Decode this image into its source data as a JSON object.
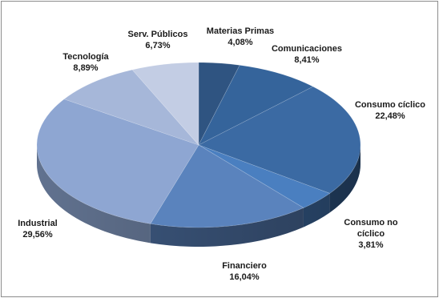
{
  "chart_data": {
    "type": "pie",
    "title": "",
    "legend": "none",
    "slices": [
      {
        "name": "Materias Primas",
        "value": 4.08,
        "value_label": "4,08%",
        "color": "#2f5481"
      },
      {
        "name": "Comunicaciones",
        "value": 8.41,
        "value_label": "8,41%",
        "color": "#35649b"
      },
      {
        "name": "Consumo cíclico",
        "value": 22.48,
        "value_label": "22,48%",
        "color": "#3b6aa3"
      },
      {
        "name": "Consumo no cíclico",
        "value": 3.81,
        "value_label": "3,81%",
        "color": "#4a7fc0"
      },
      {
        "name": "Financiero",
        "value": 16.04,
        "value_label": "16,04%",
        "color": "#5a83bd"
      },
      {
        "name": "Industrial",
        "value": 29.56,
        "value_label": "29,56%",
        "color": "#8ea6d2"
      },
      {
        "name": "Tecnología",
        "value": 8.89,
        "value_label": "8,89%",
        "color": "#a6b7d9"
      },
      {
        "name": "Serv. Públicos",
        "value": 6.73,
        "value_label": "6,73%",
        "color": "#c3cde4"
      }
    ]
  }
}
